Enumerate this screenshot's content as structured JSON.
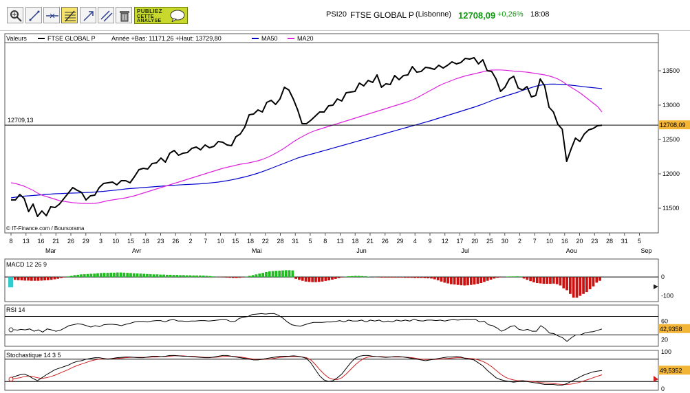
{
  "toolbar": {
    "tools": [
      "zoom-tool",
      "draw-line-tool",
      "horizontal-line-tool",
      "fibonacci-tool",
      "trend-arrow-tool",
      "parallel-lines-tool",
      "delete-tool"
    ],
    "ad_lines": [
      "PUBLIEZ",
      "CETTE",
      "ANALYSE"
    ]
  },
  "quote": {
    "market": "PSI20",
    "name": "FTSE GLOBAL P",
    "place": "(Lisbonne)",
    "price": "12708,09",
    "change": "+0,26%",
    "time": "18:08",
    "up_color": "#119911"
  },
  "chart_data": [
    {
      "type": "line",
      "title": "FTSE GLOBAL P",
      "header": {
        "label": "Valeurs",
        "series_name": "FTSE GLOBAL P",
        "range_text": "Année +Bas: 11171,26 +Haut: 13729,80",
        "ma50_label": "MA50",
        "ma20_label": "MA20"
      },
      "colors": {
        "price": "#000000",
        "ma50": "#0000cc",
        "ma20": "#dd22dd"
      },
      "ylim": [
        11150,
        13900
      ],
      "yticks": [
        11500,
        12000,
        12500,
        13000,
        13500
      ],
      "ytick_labels": [
        "11500",
        "12000",
        "12500",
        "13000",
        "13500"
      ],
      "ref_value": 12709.13,
      "ref_label": "12709,13",
      "last_value": 12708.09,
      "last_label": "12708,09",
      "x_day_labels": [
        "8",
        "13",
        "16",
        "21",
        "26",
        "29",
        "3",
        "10",
        "15",
        "18",
        "23",
        "26",
        "2",
        "7",
        "10",
        "15",
        "18",
        "22",
        "28",
        "31",
        "5",
        "8",
        "13",
        "18",
        "21",
        "26",
        "29",
        "4",
        "9",
        "12",
        "17",
        "20",
        "25",
        "30",
        "2",
        "7",
        "10",
        "16",
        "20",
        "23",
        "28",
        "31",
        "5"
      ],
      "month_labels": [
        "Mar",
        "Avr",
        "Mai",
        "Jun",
        "Jul",
        "Aou",
        "Sep"
      ],
      "month_day_index": [
        0,
        8,
        16,
        23,
        30,
        37,
        42
      ],
      "copyright": "© IT-Finance.com / Boursorama",
      "price": [
        11620,
        11620,
        11700,
        11640,
        11450,
        11560,
        11380,
        11460,
        11390,
        11520,
        11510,
        11560,
        11640,
        11720,
        11800,
        11760,
        11730,
        11620,
        11680,
        11690,
        11800,
        11860,
        11870,
        11880,
        11840,
        11900,
        11900,
        11870,
        11960,
        12060,
        12080,
        12070,
        12150,
        12160,
        12230,
        12170,
        12300,
        12340,
        12270,
        12300,
        12310,
        12370,
        12390,
        12350,
        12420,
        12380,
        12400,
        12470,
        12460,
        12420,
        12410,
        12540,
        12580,
        12680,
        12860,
        12870,
        12930,
        12900,
        13040,
        13070,
        13010,
        13090,
        13260,
        13220,
        13090,
        12930,
        12730,
        12730,
        12780,
        12840,
        12900,
        12900,
        12990,
        13000,
        13090,
        13060,
        13180,
        13190,
        13200,
        13320,
        13280,
        13360,
        13330,
        13440,
        13260,
        13310,
        13300,
        13430,
        13370,
        13430,
        13440,
        13560,
        13480,
        13490,
        13550,
        13540,
        13520,
        13580,
        13540,
        13580,
        13630,
        13600,
        13620,
        13680,
        13670,
        13690,
        13600,
        13660,
        13500,
        13490,
        13380,
        13200,
        13260,
        13380,
        13420,
        13250,
        13220,
        13270,
        13120,
        13140,
        13380,
        13280,
        12970,
        12900,
        12720,
        12650,
        12180,
        12360,
        12520,
        12470,
        12580,
        12640,
        12660,
        12700,
        12708
      ],
      "ma50": [
        11650,
        11660,
        11670,
        11675,
        11680,
        11685,
        11690,
        11695,
        11700,
        11705,
        11710,
        11712,
        11715,
        11718,
        11720,
        11722,
        11725,
        11728,
        11730,
        11735,
        11740,
        11745,
        11752,
        11758,
        11765,
        11772,
        11780,
        11786,
        11790,
        11795,
        11800,
        11805,
        11810,
        11815,
        11820,
        11825,
        11830,
        11834,
        11838,
        11842,
        11845,
        11848,
        11851,
        11855,
        11860,
        11866,
        11873,
        11880,
        11890,
        11900,
        11912,
        11925,
        11940,
        11955,
        11972,
        11990,
        12010,
        12032,
        12056,
        12080,
        12105,
        12130,
        12155,
        12180,
        12205,
        12230,
        12250,
        12268,
        12285,
        12302,
        12320,
        12338,
        12356,
        12374,
        12392,
        12410,
        12428,
        12446,
        12464,
        12482,
        12500,
        12518,
        12536,
        12554,
        12572,
        12590,
        12608,
        12626,
        12644,
        12662,
        12680,
        12698,
        12716,
        12734,
        12752,
        12770,
        12790,
        12810,
        12830,
        12850,
        12870,
        12890,
        12910,
        12930,
        12950,
        12970,
        12992,
        13015,
        13040,
        13065,
        13090,
        13110,
        13130,
        13150,
        13170,
        13190,
        13215,
        13235,
        13255,
        13275,
        13290,
        13300,
        13305,
        13306,
        13304,
        13300,
        13296,
        13290,
        13283,
        13275,
        13267,
        13260,
        13254,
        13247,
        13240
      ],
      "ma20": [
        11870,
        11860,
        11840,
        11820,
        11790,
        11760,
        11720,
        11690,
        11670,
        11650,
        11630,
        11610,
        11600,
        11590,
        11580,
        11575,
        11570,
        11568,
        11568,
        11570,
        11580,
        11595,
        11610,
        11620,
        11630,
        11640,
        11650,
        11665,
        11680,
        11700,
        11720,
        11740,
        11760,
        11780,
        11800,
        11820,
        11840,
        11860,
        11880,
        11900,
        11920,
        11940,
        11960,
        11980,
        12000,
        12020,
        12040,
        12060,
        12080,
        12095,
        12110,
        12125,
        12140,
        12150,
        12160,
        12175,
        12190,
        12210,
        12235,
        12265,
        12300,
        12335,
        12375,
        12420,
        12465,
        12505,
        12540,
        12575,
        12605,
        12630,
        12650,
        12670,
        12690,
        12710,
        12730,
        12750,
        12770,
        12790,
        12810,
        12830,
        12850,
        12870,
        12890,
        12910,
        12930,
        12950,
        12970,
        12990,
        13010,
        13030,
        13050,
        13075,
        13105,
        13140,
        13175,
        13210,
        13245,
        13280,
        13310,
        13335,
        13360,
        13385,
        13405,
        13425,
        13440,
        13455,
        13470,
        13485,
        13500,
        13510,
        13512,
        13512,
        13508,
        13502,
        13495,
        13490,
        13485,
        13480,
        13470,
        13460,
        13450,
        13440,
        13425,
        13405,
        13380,
        13345,
        13300,
        13260,
        13220,
        13180,
        13130,
        13080,
        13030,
        12980,
        12900
      ]
    },
    {
      "type": "bar",
      "title": "MACD 12 26 9",
      "ylim": [
        -120,
        70
      ],
      "yticks": [
        0,
        -100
      ],
      "ytick_labels": [
        "0",
        "-100"
      ],
      "colors": {
        "positive": "#22bb22",
        "negative": "#cc1111",
        "marker": "#33cccc"
      },
      "values": [
        -15,
        -17,
        -18,
        -19,
        -19,
        -20,
        -20,
        -20,
        -19,
        -18,
        -17,
        -15,
        -12,
        -9,
        -5,
        -2,
        3,
        6,
        10,
        12,
        14,
        15,
        16,
        17,
        18,
        20,
        21,
        22,
        22,
        23,
        23,
        24,
        24,
        23,
        22,
        21,
        20,
        19,
        18,
        17,
        16,
        15,
        14,
        14,
        13,
        13,
        12,
        12,
        11,
        11,
        10,
        10,
        9,
        9,
        8,
        8,
        8,
        7,
        6,
        5,
        3,
        1,
        -1,
        -2,
        -3,
        -4,
        -5,
        -5,
        -4,
        -2,
        2,
        6,
        10,
        14,
        18,
        22,
        26,
        30,
        32,
        33,
        34,
        35,
        36,
        36,
        35,
        -10,
        -15,
        -20,
        -24,
        -26,
        -27,
        -27,
        -26,
        -24,
        -21,
        -18,
        -14,
        -10,
        -6,
        -2,
        2,
        4,
        5,
        6,
        6,
        5,
        4,
        2,
        0,
        -1,
        -2,
        -3,
        -3,
        -3,
        -3,
        -3,
        -3,
        -3,
        -4,
        -4,
        -4,
        -5,
        -5,
        -5,
        -6,
        -7,
        -8,
        -12,
        -18,
        -24,
        -30,
        -34,
        -38,
        -40,
        -42,
        -44,
        -45,
        -44,
        -42,
        -40,
        -36,
        -32,
        -26,
        -20,
        -14,
        -8,
        -4,
        -2,
        0,
        2,
        3,
        3,
        4,
        3,
        -8,
        -15,
        -22,
        -28,
        -32,
        -34,
        -36,
        -36,
        -36,
        -35,
        -38,
        -45,
        -60,
        -70,
        -90,
        -110,
        -110,
        -100,
        -90,
        -80,
        -65,
        -50,
        -30,
        -20
      ]
    },
    {
      "type": "line",
      "title": "RSI 14",
      "ylim": [
        10,
        90
      ],
      "yticks": [
        60,
        20
      ],
      "ytick_labels": [
        "60",
        "20"
      ],
      "guide_levels": [
        70,
        30
      ],
      "last_label": "42,9358",
      "values": [
        40,
        42,
        41,
        43,
        38,
        41,
        36,
        43,
        41,
        38,
        40,
        45,
        50,
        52,
        54,
        53,
        50,
        47,
        50,
        48,
        52,
        53,
        53,
        52,
        50,
        53,
        55,
        58,
        59,
        59,
        58,
        60,
        61,
        61,
        58,
        62,
        63,
        60,
        60,
        59,
        60,
        60,
        61,
        61,
        60,
        61,
        62,
        63,
        63,
        59,
        59,
        66,
        68,
        70,
        74,
        75,
        76,
        75,
        76,
        76,
        72,
        66,
        58,
        52,
        50,
        49,
        52,
        55,
        57,
        57,
        57,
        58,
        58,
        59,
        61,
        58,
        62,
        60,
        60,
        62,
        58,
        62,
        60,
        62,
        58,
        60,
        58,
        62,
        60,
        62,
        60,
        64,
        61,
        60,
        62,
        62,
        61,
        62,
        60,
        62,
        63,
        62,
        63,
        64,
        63,
        64,
        58,
        60,
        52,
        50,
        45,
        38,
        42,
        48,
        50,
        42,
        40,
        42,
        38,
        38,
        50,
        44,
        34,
        33,
        28,
        24,
        16,
        24,
        30,
        30,
        34,
        36,
        37,
        40,
        42.94
      ]
    },
    {
      "type": "line",
      "title": "Stochastique 14 3 5",
      "ylim": [
        0,
        100
      ],
      "yticks": [
        100,
        50,
        0
      ],
      "ytick_labels": [
        "100",
        "50",
        "0"
      ],
      "guide_levels": [
        80,
        20
      ],
      "last_label": "49,5352",
      "colors": {
        "k": "#000000",
        "d": "#cc2222"
      },
      "k": [
        30,
        34,
        38,
        40,
        35,
        28,
        22,
        30,
        38,
        45,
        52,
        56,
        60,
        64,
        70,
        74,
        76,
        80,
        82,
        84,
        84,
        82,
        80,
        82,
        84,
        85,
        86,
        86,
        85,
        84,
        84,
        86,
        88,
        88,
        87,
        88,
        90,
        90,
        89,
        88,
        88,
        87,
        86,
        85,
        84,
        84,
        86,
        88,
        90,
        90,
        88,
        86,
        84,
        82,
        80,
        78,
        78,
        80,
        82,
        84,
        86,
        88,
        88,
        88,
        89,
        88,
        86,
        82,
        70,
        52,
        35,
        24,
        20,
        22,
        30,
        40,
        55,
        70,
        82,
        88,
        90,
        90,
        88,
        87,
        86,
        85,
        86,
        87,
        87,
        86,
        84,
        82,
        80,
        78,
        76,
        78,
        80,
        82,
        84,
        86,
        86,
        87,
        86,
        82,
        80,
        78,
        70,
        62,
        50,
        40,
        30,
        25,
        22,
        20,
        18,
        20,
        22,
        20,
        18,
        16,
        14,
        12,
        12,
        12,
        10,
        10,
        14,
        20,
        26,
        32,
        38,
        42,
        46,
        48,
        49.5
      ],
      "d": [
        26,
        28,
        30,
        33,
        35,
        33,
        30,
        28,
        30,
        33,
        37,
        42,
        47,
        52,
        58,
        63,
        67,
        71,
        75,
        78,
        80,
        81,
        81,
        81,
        82,
        83,
        84,
        85,
        85,
        85,
        85,
        85,
        86,
        86,
        87,
        87,
        88,
        89,
        89,
        89,
        88,
        88,
        87,
        86,
        85,
        85,
        85,
        86,
        87,
        88,
        88,
        87,
        86,
        84,
        82,
        80,
        79,
        79,
        80,
        81,
        83,
        85,
        86,
        87,
        87,
        87,
        86,
        84,
        78,
        66,
        52,
        40,
        30,
        26,
        25,
        30,
        40,
        52,
        64,
        74,
        82,
        86,
        87,
        87,
        87,
        86,
        86,
        86,
        86,
        86,
        85,
        84,
        82,
        80,
        79,
        79,
        79,
        80,
        81,
        82,
        83,
        84,
        84,
        83,
        82,
        81,
        78,
        74,
        68,
        60,
        50,
        40,
        32,
        27,
        24,
        22,
        22,
        21,
        20,
        19,
        17,
        16,
        15,
        14,
        13,
        12,
        12,
        13,
        15,
        18,
        22,
        26,
        30,
        34,
        38
      ]
    }
  ]
}
